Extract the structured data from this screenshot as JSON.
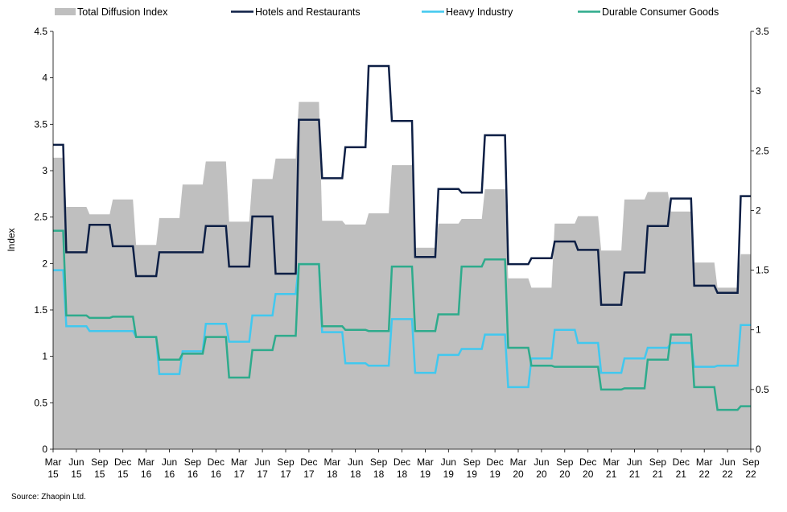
{
  "chart_data": {
    "type": "area+line",
    "categories": [
      "Mar 15",
      "Jun 15",
      "Sep 15",
      "Dec 15",
      "Mar 16",
      "Jun 16",
      "Sep 16",
      "Dec 16",
      "Mar 17",
      "Jun 17",
      "Sep 17",
      "Dec 17",
      "Mar 18",
      "Jun 18",
      "Sep 18",
      "Dec 18",
      "Mar 19",
      "Jun 19",
      "Sep 19",
      "Dec 19",
      "Mar 20",
      "Jun 20",
      "Sep 20",
      "Dec 20",
      "Mar 21",
      "Jun 21",
      "Sep 21",
      "Dec 21",
      "Mar 22",
      "Jun 22",
      "Sep 22"
    ],
    "x_tick_labels": [
      {
        "top": "Mar",
        "bottom": "15"
      },
      {
        "top": "Jun",
        "bottom": "15"
      },
      {
        "top": "Sep",
        "bottom": "15"
      },
      {
        "top": "Dec",
        "bottom": "15"
      },
      {
        "top": "Mar",
        "bottom": "16"
      },
      {
        "top": "Jun",
        "bottom": "16"
      },
      {
        "top": "Sep",
        "bottom": "16"
      },
      {
        "top": "Dec",
        "bottom": "16"
      },
      {
        "top": "Mar",
        "bottom": "17"
      },
      {
        "top": "Jun",
        "bottom": "17"
      },
      {
        "top": "Sep",
        "bottom": "17"
      },
      {
        "top": "Dec",
        "bottom": "17"
      },
      {
        "top": "Mar",
        "bottom": "18"
      },
      {
        "top": "Jun",
        "bottom": "18"
      },
      {
        "top": "Sep",
        "bottom": "18"
      },
      {
        "top": "Dec",
        "bottom": "18"
      },
      {
        "top": "Mar",
        "bottom": "19"
      },
      {
        "top": "Jun",
        "bottom": "19"
      },
      {
        "top": "Sep",
        "bottom": "19"
      },
      {
        "top": "Dec",
        "bottom": "19"
      },
      {
        "top": "Mar",
        "bottom": "20"
      },
      {
        "top": "Jun",
        "bottom": "20"
      },
      {
        "top": "Sep",
        "bottom": "20"
      },
      {
        "top": "Dec",
        "bottom": "20"
      },
      {
        "top": "Mar",
        "bottom": "21"
      },
      {
        "top": "Jun",
        "bottom": "21"
      },
      {
        "top": "Sep",
        "bottom": "21"
      },
      {
        "top": "Dec",
        "bottom": "21"
      },
      {
        "top": "Mar",
        "bottom": "22"
      },
      {
        "top": "Jun",
        "bottom": "22"
      },
      {
        "top": "Sep",
        "bottom": "22"
      }
    ],
    "ylabel": "Index",
    "ylim_left": [
      0,
      4.5
    ],
    "yticks_left": [
      "0",
      "0.5",
      "1",
      "1.5",
      "2",
      "2.5",
      "3",
      "3.5",
      "4",
      "4.5"
    ],
    "ylim_right": [
      0,
      3.5
    ],
    "yticks_right": [
      "0",
      "0.5",
      "1",
      "1.5",
      "2",
      "2.5",
      "3",
      "3.5"
    ],
    "grid": false,
    "legend_position": "top",
    "series": [
      {
        "name": "Total Diffusion Index",
        "kind": "area",
        "axis": "left",
        "color": "#bfbfbf",
        "values": [
          3.14,
          2.61,
          2.53,
          2.69,
          2.2,
          2.49,
          2.85,
          3.1,
          2.45,
          2.91,
          3.13,
          3.74,
          2.46,
          2.42,
          2.54,
          3.06,
          2.17,
          2.43,
          2.48,
          2.8,
          1.84,
          1.74,
          2.43,
          2.51,
          2.14,
          2.69,
          2.77,
          2.56,
          2.01,
          1.74,
          2.1
        ]
      },
      {
        "name": "Hotels and Restaurants",
        "kind": "line",
        "axis": "right",
        "color": "#0d1f45",
        "values": [
          2.55,
          1.65,
          1.88,
          1.7,
          1.45,
          1.65,
          1.65,
          1.87,
          1.53,
          1.95,
          1.47,
          2.76,
          2.27,
          2.53,
          3.21,
          2.75,
          1.61,
          2.18,
          2.15,
          2.63,
          1.55,
          1.6,
          1.74,
          1.67,
          1.21,
          1.48,
          1.87,
          2.1,
          1.37,
          1.31,
          2.12
        ]
      },
      {
        "name": "Heavy Industry",
        "kind": "line",
        "axis": "right",
        "color": "#41c8ef",
        "values": [
          1.5,
          1.03,
          0.99,
          0.99,
          0.94,
          0.63,
          0.82,
          1.05,
          0.9,
          1.12,
          1.3,
          1.55,
          0.98,
          0.72,
          0.7,
          1.09,
          0.64,
          0.79,
          0.84,
          0.96,
          0.52,
          0.76,
          1.0,
          0.89,
          0.64,
          0.76,
          0.85,
          0.89,
          0.69,
          0.7,
          1.04
        ]
      },
      {
        "name": "Durable Consumer  Goods",
        "kind": "line",
        "axis": "right",
        "color": "#2eab8c",
        "values": [
          1.83,
          1.12,
          1.1,
          1.11,
          0.94,
          0.75,
          0.8,
          0.94,
          0.6,
          0.83,
          0.95,
          1.55,
          1.03,
          1.0,
          0.99,
          1.53,
          0.99,
          1.13,
          1.53,
          1.59,
          0.85,
          0.7,
          0.69,
          0.69,
          0.5,
          0.51,
          0.75,
          0.96,
          0.52,
          0.33,
          0.36
        ]
      }
    ],
    "source": "Source: Zhaopin Ltd."
  }
}
